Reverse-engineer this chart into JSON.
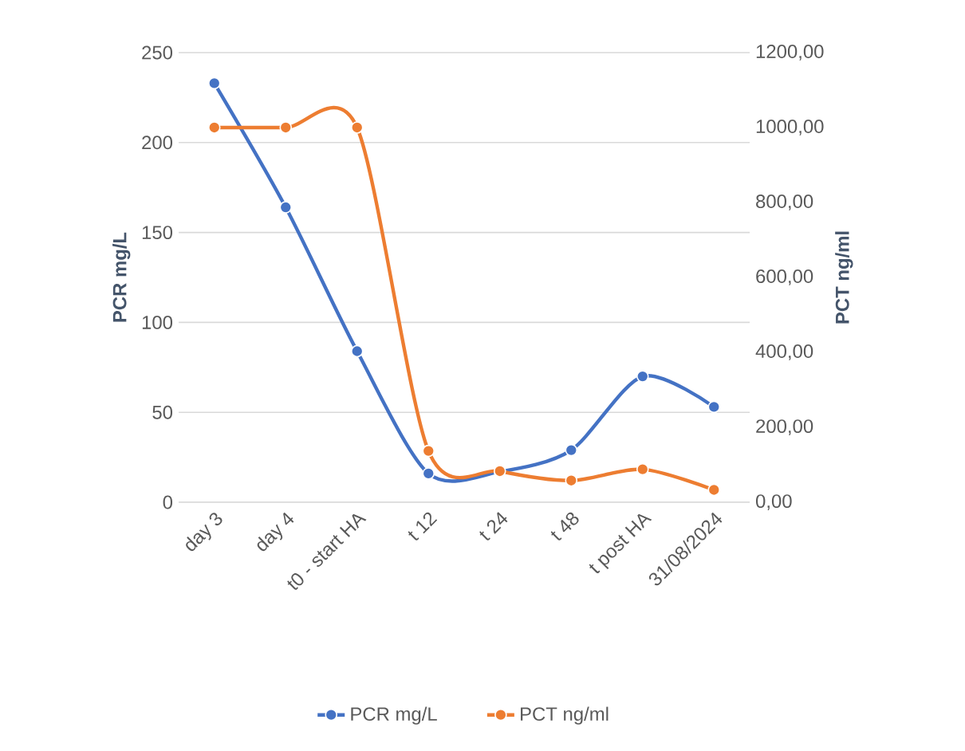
{
  "chart_data": {
    "type": "line",
    "xlabel": null,
    "ylabel": "PCR  mg/L",
    "y2label": "PCT ng/ml",
    "categories": [
      "day 3",
      "day 4",
      "t0 - start HA",
      "t 12",
      "t 24",
      "t 48",
      "t post HA",
      "31/08/2024"
    ],
    "series": [
      {
        "name": "PCR  mg/L",
        "color": "#4472c4",
        "values": [
          233,
          164,
          84,
          16,
          17,
          29,
          70,
          53
        ]
      },
      {
        "name": "PCT ng/ml",
        "color": "#ed7d31",
        "axis": "y2",
        "values": [
          1000,
          1000,
          1000,
          137,
          83,
          58,
          88,
          33
        ]
      }
    ],
    "ylim": [
      0,
      250
    ],
    "yticks": [
      0,
      50,
      100,
      150,
      200,
      250
    ],
    "y2lim": [
      0,
      1200
    ],
    "y2ticks": [
      {
        "value": 0,
        "label": "0,00"
      },
      {
        "value": 200,
        "label": "200,00"
      },
      {
        "value": 400,
        "label": "400,00"
      },
      {
        "value": 600,
        "label": "600,00"
      },
      {
        "value": 800,
        "label": "800,00"
      },
      {
        "value": 1000,
        "label": "1000,00"
      },
      {
        "value": 1200,
        "label": "1200,00"
      }
    ],
    "grid": "y",
    "legend": "bottom",
    "marker": "circle",
    "line_style": "solid"
  }
}
